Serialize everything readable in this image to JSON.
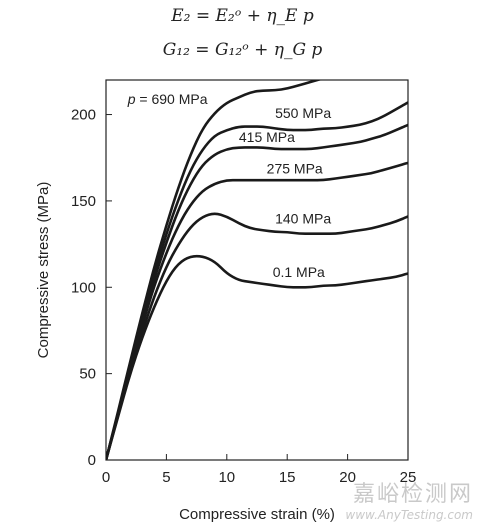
{
  "equations": {
    "line1": "E₂ = E₂ᵒ + η_E p",
    "line2": "G₁₂ = G₁₂ᵒ + η_G p"
  },
  "chart_data": {
    "type": "line",
    "xlabel": "Compressive strain (%)",
    "ylabel": "Compressive stress (MPa)",
    "xlim": [
      0,
      25
    ],
    "ylim": [
      0,
      220
    ],
    "xticks": [
      0,
      5,
      10,
      15,
      20,
      25
    ],
    "yticks": [
      0,
      50,
      100,
      150,
      200
    ],
    "grid": false,
    "series": [
      {
        "name": "p = 690 MPa",
        "label_pos": [
          1.8,
          206
        ],
        "points": [
          [
            0,
            0
          ],
          [
            1,
            28
          ],
          [
            2,
            57
          ],
          [
            3,
            85
          ],
          [
            4,
            112
          ],
          [
            5,
            136
          ],
          [
            6,
            158
          ],
          [
            7,
            177
          ],
          [
            8,
            192
          ],
          [
            9,
            201
          ],
          [
            10,
            207
          ],
          [
            11,
            210
          ],
          [
            12,
            213
          ],
          [
            13,
            214
          ],
          [
            14,
            214
          ],
          [
            15,
            215
          ],
          [
            16,
            217
          ],
          [
            17,
            219
          ],
          [
            18,
            221
          ]
        ]
      },
      {
        "name": "550 MPa",
        "label_pos": [
          14,
          198
        ],
        "points": [
          [
            0,
            0
          ],
          [
            1,
            27
          ],
          [
            2,
            55
          ],
          [
            3,
            82
          ],
          [
            4,
            108
          ],
          [
            5,
            131
          ],
          [
            6,
            151
          ],
          [
            7,
            168
          ],
          [
            8,
            180
          ],
          [
            9,
            188
          ],
          [
            10,
            191
          ],
          [
            11,
            193
          ],
          [
            12,
            193
          ],
          [
            13,
            193
          ],
          [
            14,
            192
          ],
          [
            15,
            191
          ],
          [
            16,
            191
          ],
          [
            17,
            191
          ],
          [
            18,
            192
          ],
          [
            19,
            192
          ],
          [
            20,
            193
          ],
          [
            21,
            194
          ],
          [
            22,
            196
          ],
          [
            23,
            199
          ],
          [
            24,
            203
          ],
          [
            25,
            207
          ]
        ]
      },
      {
        "name": "415 MPa",
        "label_pos": [
          11,
          184
        ],
        "points": [
          [
            0,
            0
          ],
          [
            1,
            27
          ],
          [
            2,
            54
          ],
          [
            3,
            80
          ],
          [
            4,
            105
          ],
          [
            5,
            126
          ],
          [
            6,
            145
          ],
          [
            7,
            160
          ],
          [
            8,
            171
          ],
          [
            9,
            177
          ],
          [
            10,
            180
          ],
          [
            11,
            181
          ],
          [
            12,
            181
          ],
          [
            13,
            181
          ],
          [
            14,
            180
          ],
          [
            15,
            180
          ],
          [
            16,
            180
          ],
          [
            17,
            180
          ],
          [
            18,
            181
          ],
          [
            19,
            182
          ],
          [
            20,
            183
          ],
          [
            21,
            184
          ],
          [
            22,
            186
          ],
          [
            23,
            188
          ],
          [
            24,
            191
          ],
          [
            25,
            194
          ]
        ]
      },
      {
        "name": "275 MPa",
        "label_pos": [
          13.3,
          166
        ],
        "points": [
          [
            0,
            0
          ],
          [
            1,
            26
          ],
          [
            2,
            53
          ],
          [
            3,
            78
          ],
          [
            4,
            101
          ],
          [
            5,
            120
          ],
          [
            6,
            136
          ],
          [
            7,
            148
          ],
          [
            8,
            156
          ],
          [
            9,
            160
          ],
          [
            10,
            162
          ],
          [
            11,
            162
          ],
          [
            12,
            162
          ],
          [
            13,
            162
          ],
          [
            14,
            162
          ],
          [
            15,
            162
          ],
          [
            16,
            162
          ],
          [
            17,
            162
          ],
          [
            18,
            162
          ],
          [
            19,
            163
          ],
          [
            20,
            164
          ],
          [
            21,
            165
          ],
          [
            22,
            166
          ],
          [
            23,
            168
          ],
          [
            24,
            170
          ],
          [
            25,
            172
          ]
        ]
      },
      {
        "name": "140 MPa",
        "label_pos": [
          14,
          137
        ],
        "points": [
          [
            0,
            0
          ],
          [
            1,
            26
          ],
          [
            2,
            51
          ],
          [
            3,
            74
          ],
          [
            4,
            95
          ],
          [
            5,
            112
          ],
          [
            6,
            125
          ],
          [
            7,
            135
          ],
          [
            8,
            141
          ],
          [
            9,
            143
          ],
          [
            10,
            141
          ],
          [
            11,
            137
          ],
          [
            12,
            134
          ],
          [
            13,
            133
          ],
          [
            14,
            132
          ],
          [
            15,
            132
          ],
          [
            16,
            131
          ],
          [
            17,
            131
          ],
          [
            18,
            131
          ],
          [
            19,
            131
          ],
          [
            20,
            132
          ],
          [
            21,
            133
          ],
          [
            22,
            134
          ],
          [
            23,
            136
          ],
          [
            24,
            138
          ],
          [
            25,
            141
          ]
        ]
      },
      {
        "name": "0.1 MPa",
        "label_pos": [
          13.8,
          106
        ],
        "points": [
          [
            0,
            0
          ],
          [
            1,
            25
          ],
          [
            2,
            50
          ],
          [
            3,
            71
          ],
          [
            4,
            89
          ],
          [
            5,
            104
          ],
          [
            6,
            114
          ],
          [
            7,
            118
          ],
          [
            8,
            118
          ],
          [
            9,
            115
          ],
          [
            10,
            108
          ],
          [
            11,
            104
          ],
          [
            12,
            103
          ],
          [
            13,
            102
          ],
          [
            14,
            101
          ],
          [
            15,
            100
          ],
          [
            16,
            100
          ],
          [
            17,
            100
          ],
          [
            18,
            101
          ],
          [
            19,
            101
          ],
          [
            20,
            102
          ],
          [
            21,
            103
          ],
          [
            22,
            104
          ],
          [
            23,
            105
          ],
          [
            24,
            106
          ],
          [
            25,
            108
          ]
        ]
      }
    ]
  },
  "watermark": {
    "cn": "嘉峪检测网",
    "en": "www.AnyTesting.com"
  }
}
